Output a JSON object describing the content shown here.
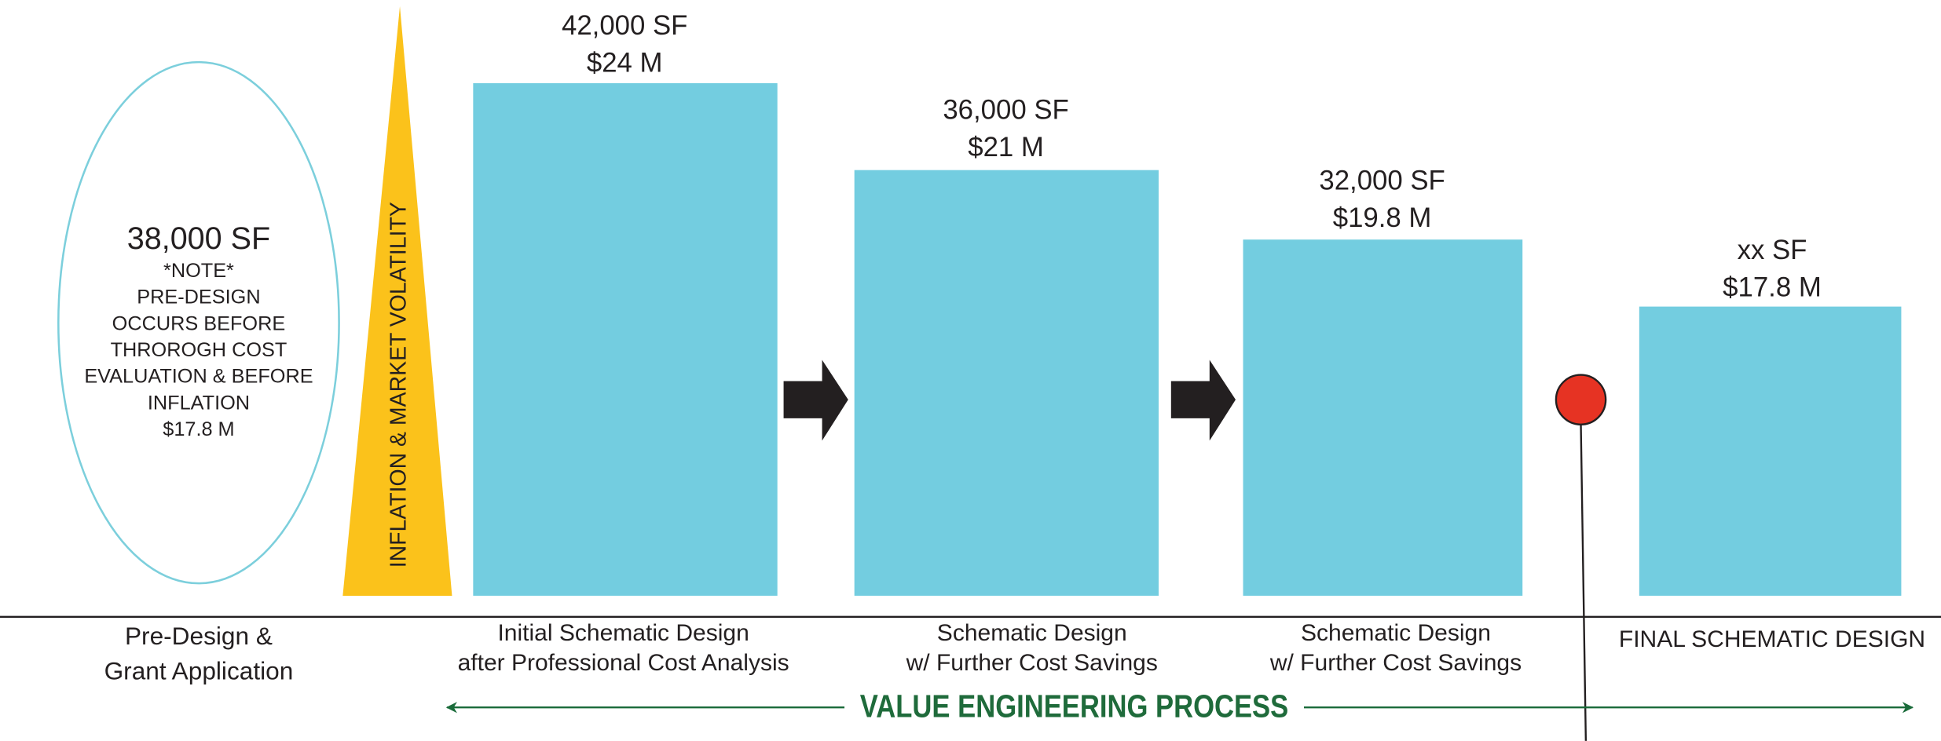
{
  "left_note": {
    "title": "38,000 SF",
    "lines": [
      "*NOTE*",
      "PRE-DESIGN",
      "OCCURS BEFORE",
      "THROROGH COST",
      "EVALUATION & BEFORE",
      "INFLATION",
      "$17.8 M"
    ]
  },
  "pre_design_label": [
    "Pre-Design &",
    "Grant Application"
  ],
  "volatility_label": "INFLATION & MARKET VOLATILITY",
  "stages": [
    {
      "area": "42,000 SF",
      "cost": "$24 M",
      "label": [
        "Initial Schematic Design",
        "after Professional Cost Analysis"
      ]
    },
    {
      "area": "36,000 SF",
      "cost": "$21 M",
      "label": [
        "Schematic  Design",
        "w/  Further Cost Savings"
      ]
    },
    {
      "area": "32,000 SF",
      "cost": "$19.8 M",
      "label": [
        "Schematic  Design",
        "w/  Further Cost Savings"
      ]
    },
    {
      "area": "xx SF",
      "cost": "$17.8 M",
      "label": [
        "FINAL SCHEMATIC DESIGN"
      ]
    }
  ],
  "process_label": "VALUE ENGINEERING PROCESS"
}
